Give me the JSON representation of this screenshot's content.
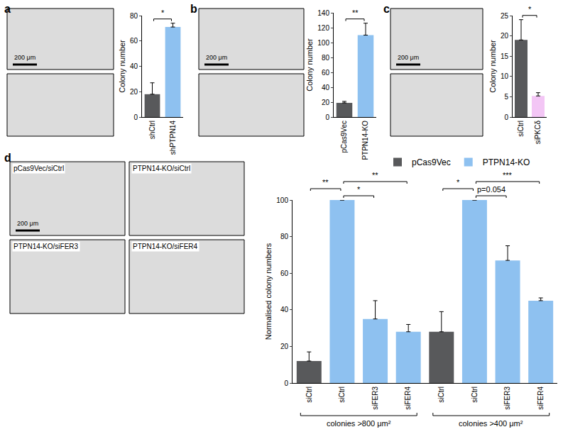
{
  "chart_data": [
    {
      "panel": "a",
      "type": "bar",
      "scale_bar": "200 μm",
      "categories": [
        "shCtrl",
        "shPTPN14"
      ],
      "values": [
        18,
        71
      ],
      "errors": [
        9,
        3
      ],
      "colors": [
        "#58595b",
        "#8ec1f0"
      ],
      "ylabel": "Colony number",
      "ylim": [
        0,
        80
      ],
      "yticks": [
        0,
        20,
        40,
        60,
        80
      ],
      "significance": [
        {
          "from": 0,
          "to": 1,
          "label": "*"
        }
      ]
    },
    {
      "panel": "b",
      "type": "bar",
      "scale_bar": "200 μm",
      "categories": [
        "pCas9Vec",
        "PTPN14-KO"
      ],
      "values": [
        19,
        110
      ],
      "errors": [
        2,
        16
      ],
      "colors": [
        "#58595b",
        "#8ec1f0"
      ],
      "ylabel": "Colony number",
      "ylim": [
        0,
        140
      ],
      "yticks": [
        0,
        20,
        40,
        60,
        80,
        100,
        120,
        140
      ],
      "significance": [
        {
          "from": 0,
          "to": 1,
          "label": "**"
        }
      ]
    },
    {
      "panel": "c",
      "type": "bar",
      "scale_bar": "200 μm",
      "categories": [
        "siCtrl",
        "siPKCδ"
      ],
      "values": [
        19,
        5.2
      ],
      "errors": [
        5,
        0.8
      ],
      "colors": [
        "#58595b",
        "#f3c6f5"
      ],
      "ylabel": "Colony number",
      "ylim": [
        0,
        25
      ],
      "yticks": [
        0,
        5,
        10,
        15,
        20,
        25
      ],
      "significance": [
        {
          "from": 0,
          "to": 1,
          "label": "*"
        }
      ]
    },
    {
      "panel": "d",
      "type": "bar",
      "scale_bar": "200 μm",
      "image_labels": [
        "pCas9Vec/siCtrl",
        "PTPN14-KO/siCtrl",
        "PTPN14-KO/siFER3",
        "PTPN14-KO/siFER4"
      ],
      "categories": [
        "siCtrl",
        "siCtrl",
        "siFER3",
        "siFER4",
        "siCtrl",
        "siCtrl",
        "siFER3",
        "siFER4"
      ],
      "series": [
        {
          "name": "pCas9Vec",
          "color": "#58595b",
          "values": [
            12,
            null,
            null,
            null,
            28,
            null,
            null,
            null
          ],
          "errors": [
            5,
            null,
            null,
            null,
            11,
            null,
            null,
            null
          ]
        },
        {
          "name": "PTPN14-KO",
          "color": "#8ec1f0",
          "values": [
            null,
            100,
            35,
            28,
            null,
            100,
            67,
            45
          ],
          "errors": [
            null,
            0,
            10,
            4,
            null,
            0,
            8,
            1.5
          ]
        }
      ],
      "ylabel": "Normalised colony numbers",
      "ylim": [
        0,
        100
      ],
      "yticks": [
        0,
        20,
        40,
        60,
        80,
        100
      ],
      "legend": "top",
      "groups": [
        {
          "label": "colonies >800 μm²",
          "from": 0,
          "to": 3
        },
        {
          "label": "colonies >400 μm²",
          "from": 4,
          "to": 7
        }
      ],
      "significance": [
        {
          "from": 1,
          "to": 2,
          "label": "*"
        },
        {
          "from": 0,
          "to": 1,
          "label": "**"
        },
        {
          "from": 1,
          "to": 3,
          "label": "**"
        },
        {
          "from": 5,
          "to": 6,
          "label": "p=0.054"
        },
        {
          "from": 4,
          "to": 5,
          "label": "*"
        },
        {
          "from": 5,
          "to": 7,
          "label": "***"
        }
      ]
    }
  ]
}
